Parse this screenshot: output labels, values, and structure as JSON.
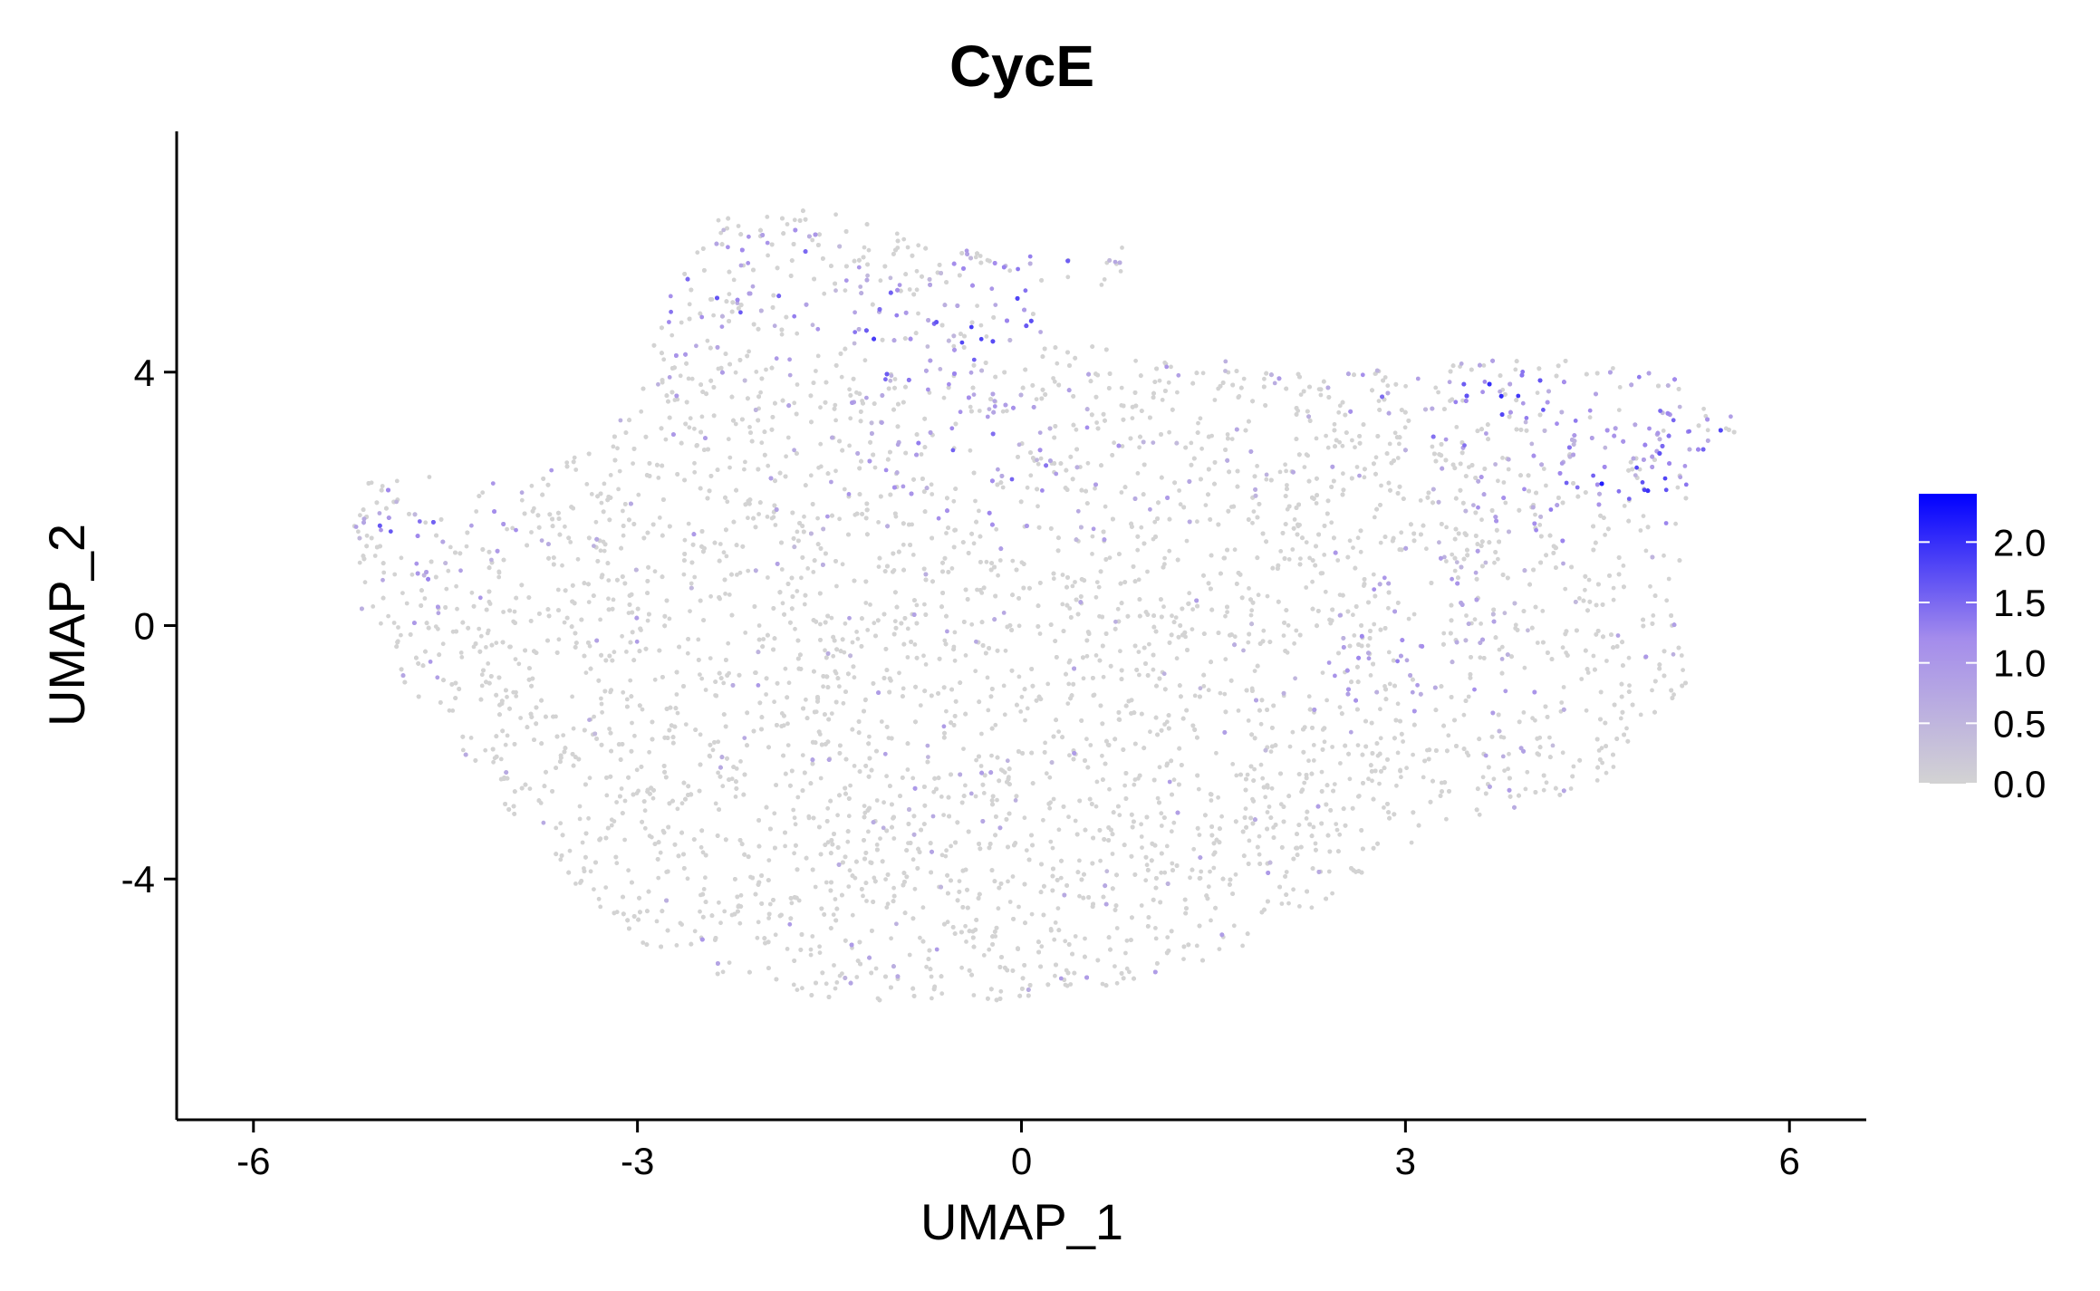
{
  "chart_data": {
    "type": "scatter",
    "title": "CycE",
    "xlabel": "UMAP_1",
    "ylabel": "UMAP_2",
    "xlim": [
      -6.6,
      6.6
    ],
    "ylim": [
      -7.8,
      7.8
    ],
    "x_ticks": [
      -6,
      -3,
      0,
      3,
      6
    ],
    "x_tick_labels": [
      "-6",
      "-3",
      "0",
      "3",
      "6"
    ],
    "y_ticks": [
      -4,
      0,
      4
    ],
    "y_tick_labels": [
      "-4",
      "0",
      "4"
    ],
    "grid": false,
    "point_color_low": "#d3d3d3",
    "point_color_high": "#0000ff",
    "color_scale": {
      "min": 0.0,
      "max": 2.4,
      "ticks": [
        0.0,
        0.5,
        1.0,
        1.5,
        2.0
      ],
      "tick_labels": [
        "0.0",
        "0.5",
        "1.0",
        "1.5",
        "2.0"
      ],
      "legend_position": "right"
    },
    "point_count_approx": 12000,
    "hotspots": [
      {
        "x": -4.9,
        "y": 1.5,
        "expr": 0.8
      },
      {
        "x": -2.1,
        "y": 5.4,
        "expr": 1.1
      },
      {
        "x": -0.8,
        "y": 4.6,
        "expr": 1.3
      },
      {
        "x": 0.3,
        "y": 5.2,
        "expr": 1.2
      },
      {
        "x": -0.3,
        "y": 2.6,
        "expr": 0.9
      },
      {
        "x": 3.6,
        "y": 3.6,
        "expr": 1.2
      },
      {
        "x": 4.7,
        "y": 2.2,
        "expr": 1.3
      },
      {
        "x": 5.2,
        "y": 3.2,
        "expr": 1.0
      },
      {
        "x": 3.2,
        "y": -0.3,
        "expr": 0.7
      }
    ]
  }
}
